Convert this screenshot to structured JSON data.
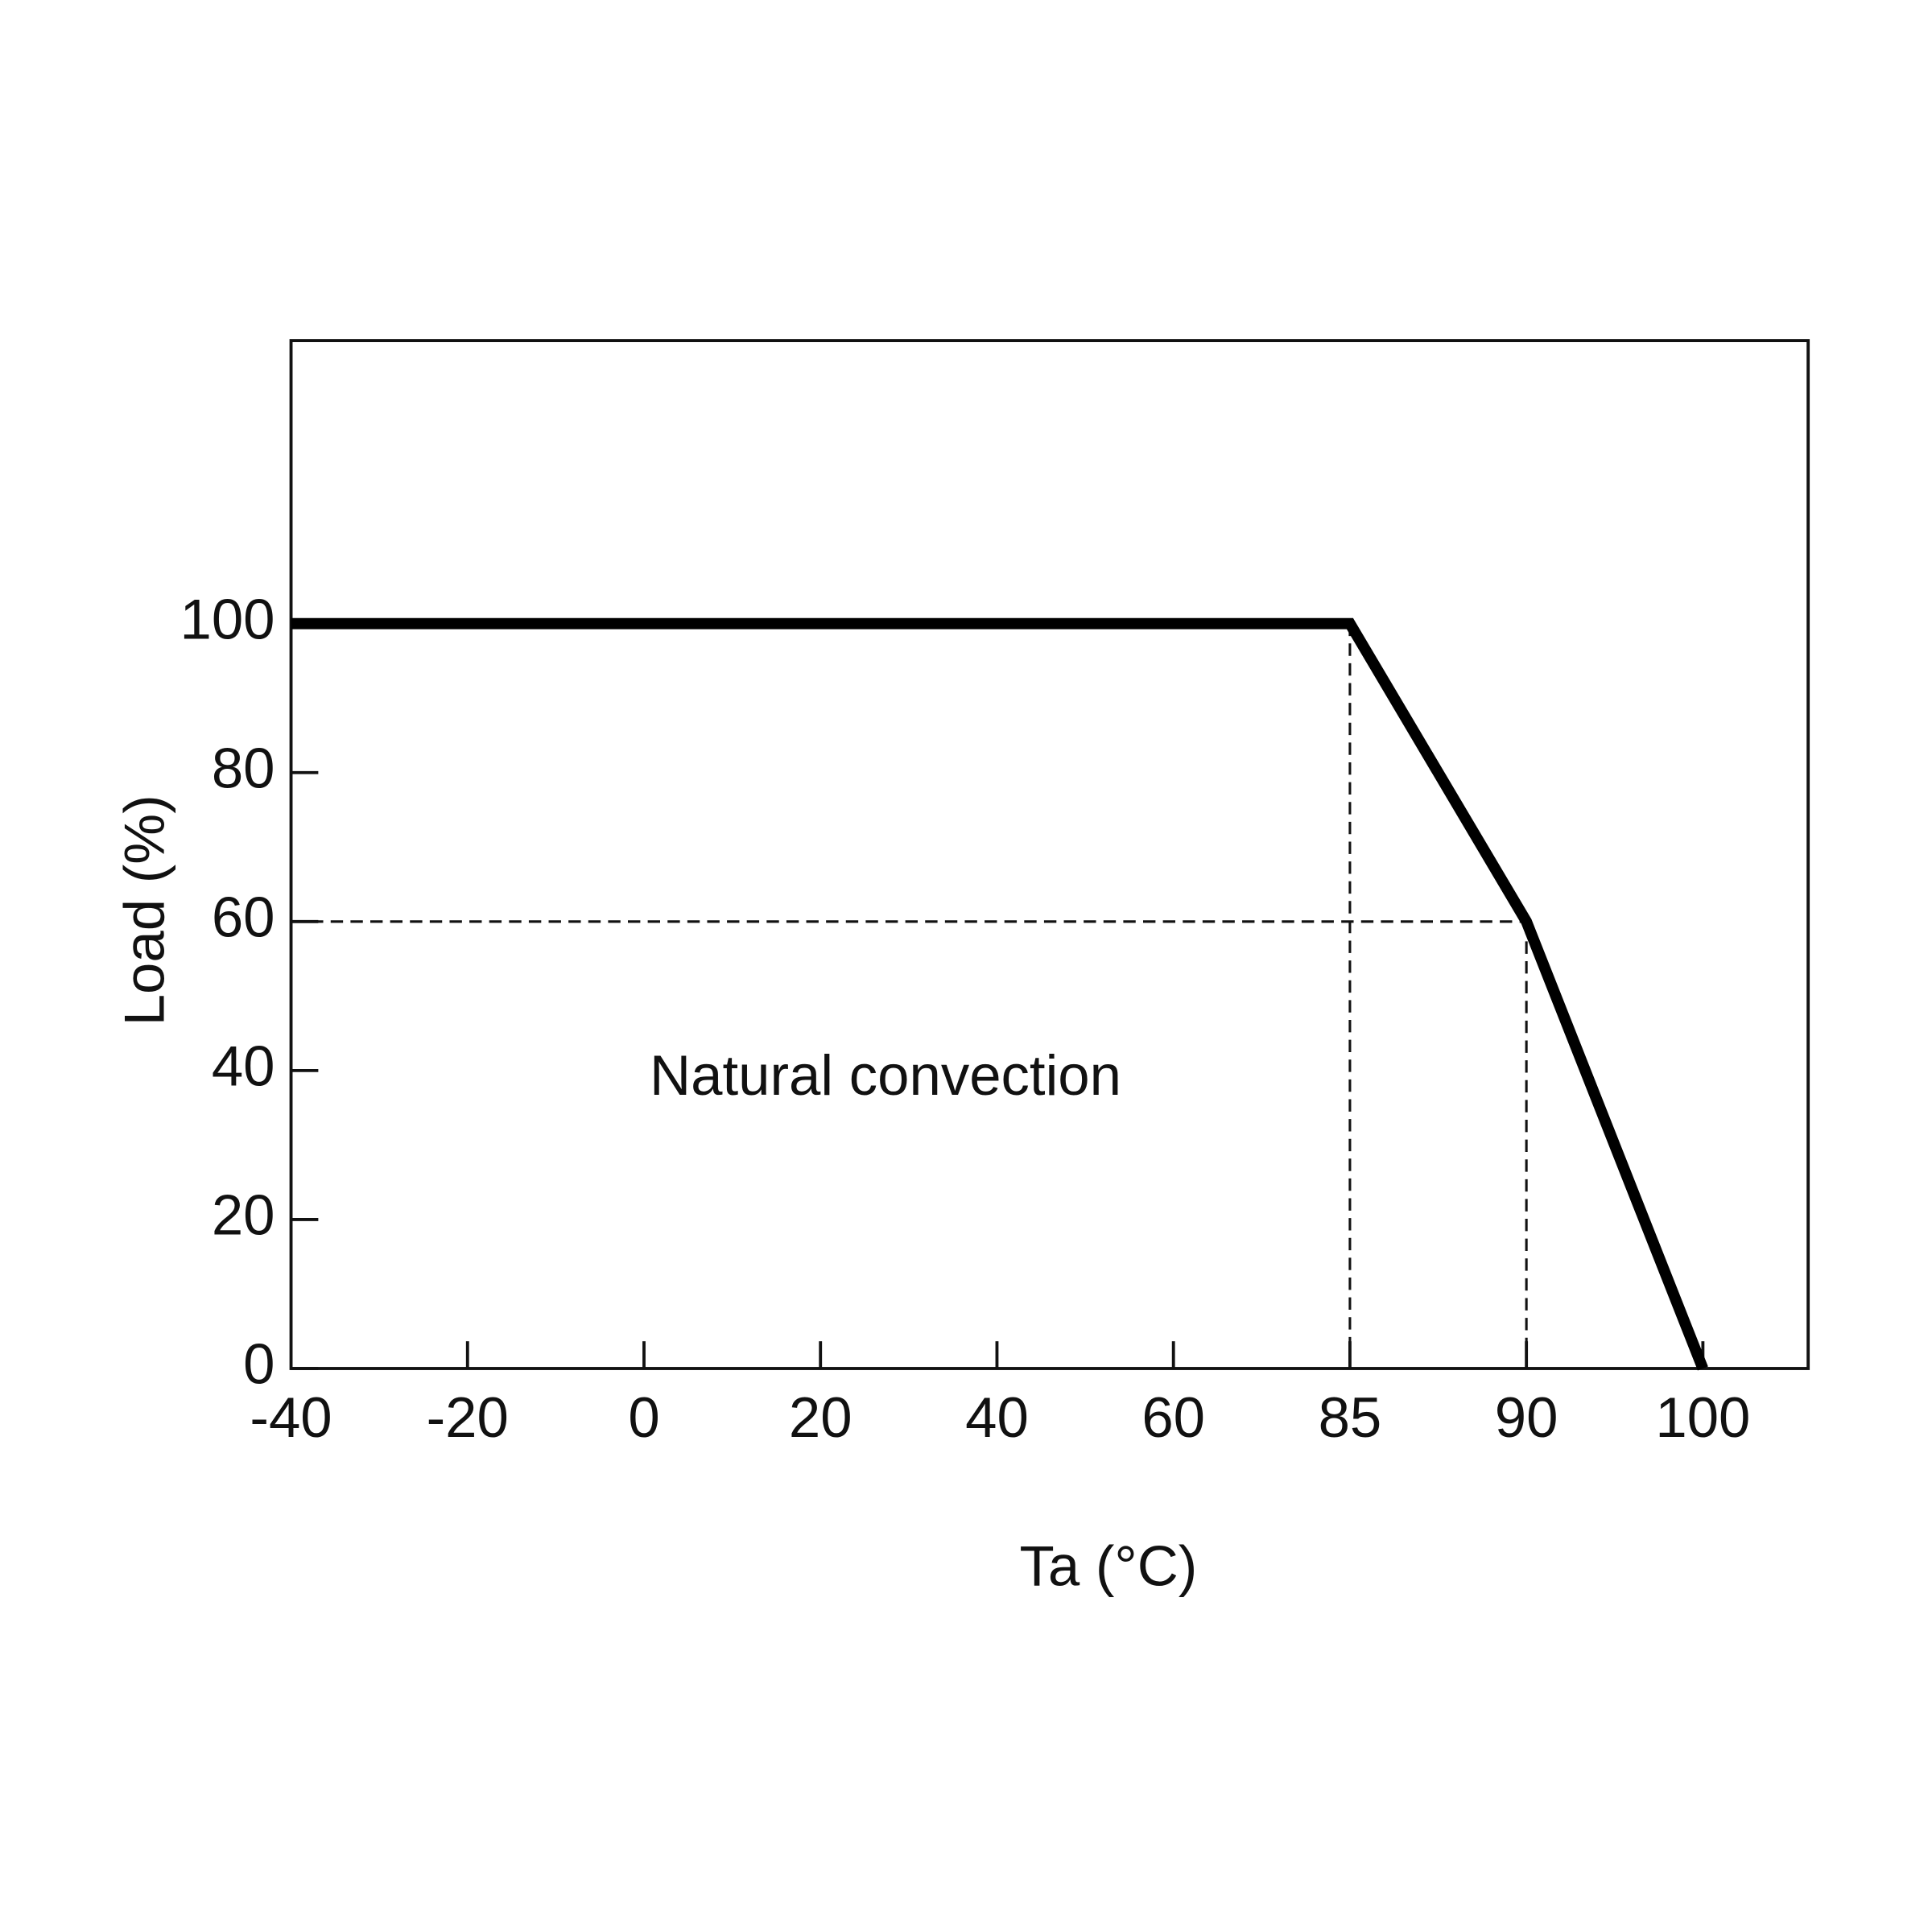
{
  "chart_data": {
    "type": "line",
    "annotation": "Natural convection",
    "x_label": "Ta (°C)",
    "y_label": "Load (%)",
    "categories": [
      "-40",
      "-20",
      "0",
      "20",
      "40",
      "60",
      "85",
      "90",
      "100"
    ],
    "series": [
      {
        "color": "#000000",
        "values": [
          100,
          100,
          100,
          100,
          100,
          100,
          100,
          60,
          0
        ]
      }
    ],
    "ylim": [
      0,
      138
    ],
    "yticks": [
      0,
      20,
      40,
      60,
      80,
      100
    ],
    "grid": false
  }
}
